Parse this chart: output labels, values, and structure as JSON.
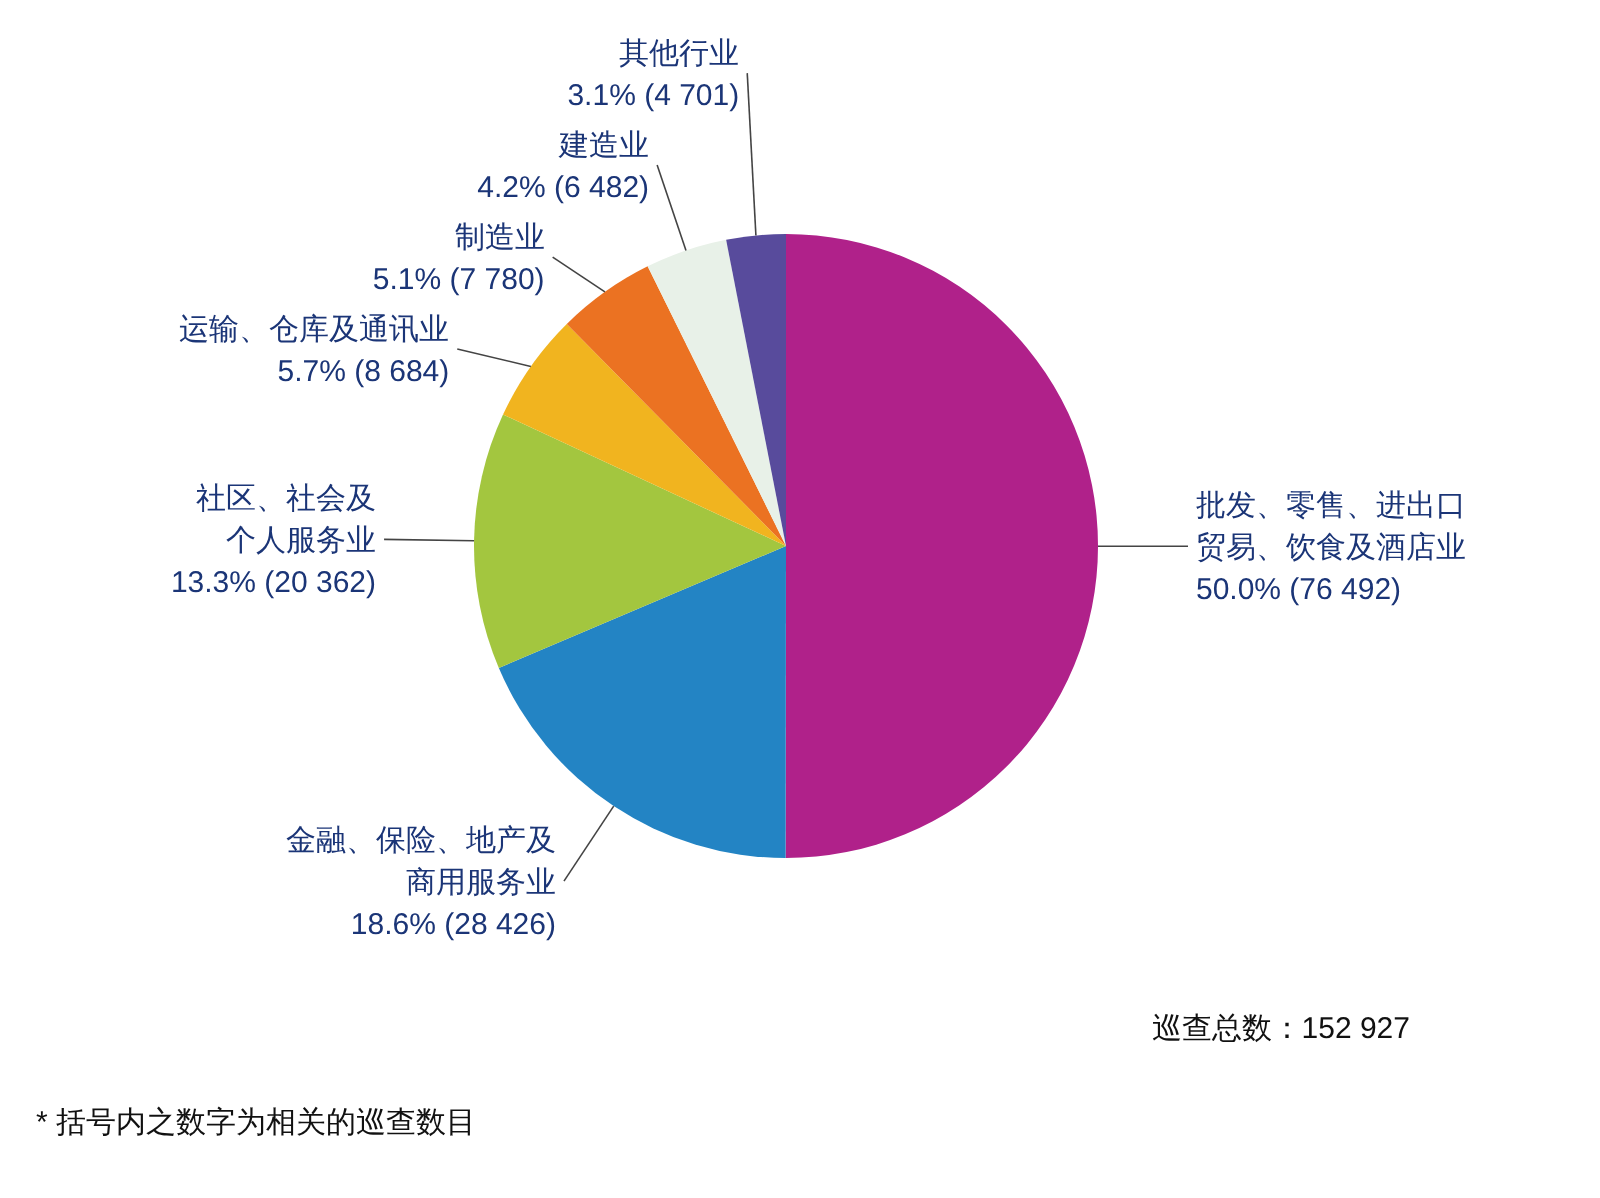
{
  "chart_data": {
    "type": "pie",
    "categories": [
      "批发、零售、进出口贸易、饮食及酒店业",
      "金融、保险、地产及商用服务业",
      "社区、社会及个人服务业",
      "运输、仓库及通讯业",
      "制造业",
      "建造业",
      "其他行业"
    ],
    "values": [
      76492,
      28426,
      20362,
      8684,
      7780,
      6482,
      4701
    ],
    "colors": [
      "#b0218a",
      "#2384c4",
      "#a3c63f",
      "#f1b41f",
      "#eb7222",
      "#e8f1e8",
      "#584b9c"
    ],
    "value_labels": [
      "50.0% (76 492)",
      "18.6% (28 426)",
      "13.3% (20 362)",
      "5.7% (8 684)",
      "5.1% (7 780)",
      "4.2% (6 482)",
      "3.1% (4 701)"
    ],
    "annotations": [
      "巡查总数：152 927",
      "* 括号内之数字为相关的巡查数目"
    ]
  }
}
